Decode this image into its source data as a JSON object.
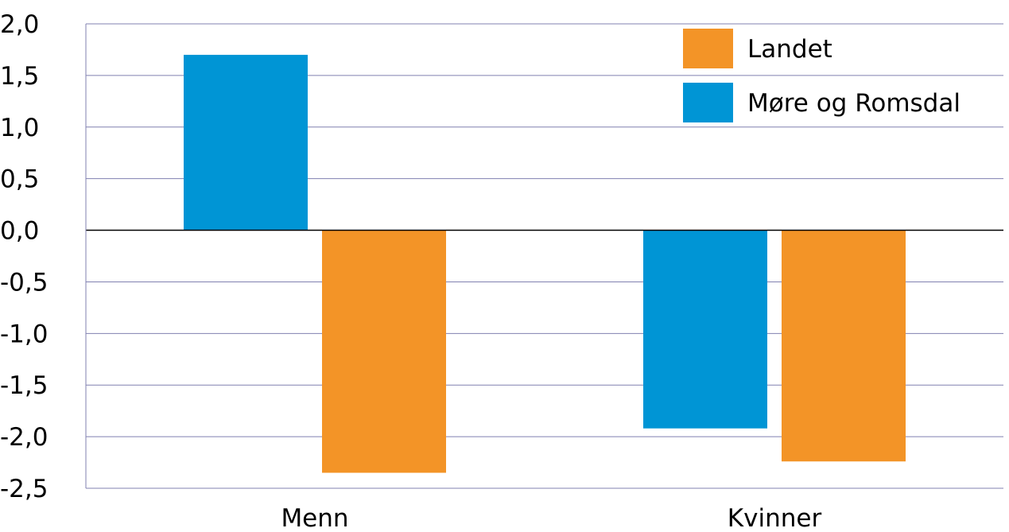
{
  "chart_data": {
    "type": "bar",
    "categories": [
      "Menn",
      "Kvinner"
    ],
    "series": [
      {
        "name": "Møre og Romsdal",
        "color": "#0095d5",
        "values": [
          1.7,
          -1.92
        ]
      },
      {
        "name": "Landet",
        "color": "#f39427",
        "values": [
          -2.35,
          -2.24
        ]
      }
    ],
    "legend_order": [
      "Landet",
      "Møre og Romsdal"
    ],
    "yticks": [
      "2,0",
      "1,5",
      "1,0",
      "0,5",
      "0,0",
      "-0,5",
      "-1,0",
      "-1,5",
      "-2,0",
      "-2,5"
    ],
    "ylim": [
      -2.5,
      2.0
    ],
    "grid": true,
    "legend_position": "top-right",
    "title": "",
    "xlabel": "",
    "ylabel": ""
  }
}
